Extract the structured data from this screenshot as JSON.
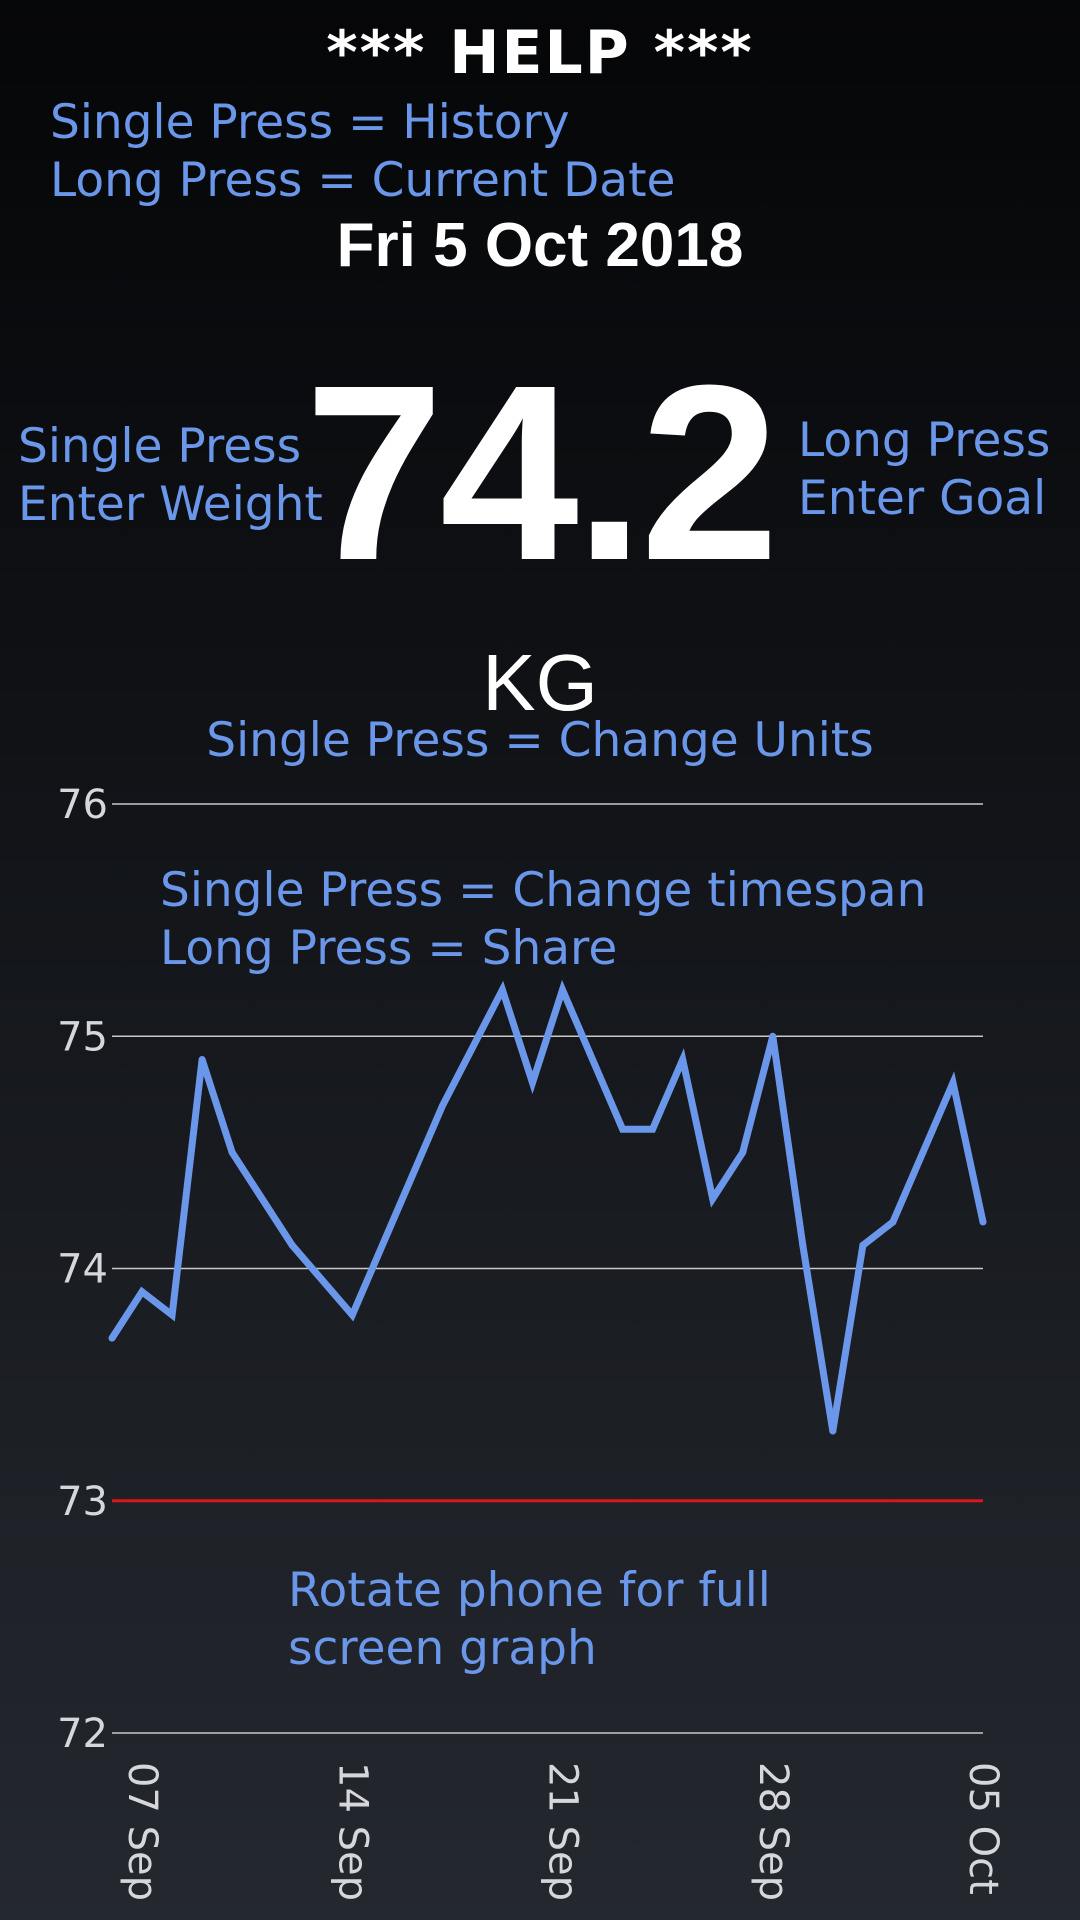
{
  "help": {
    "title": "*** HELP ***",
    "history_hint": "Single Press = History",
    "date_hint": "Long Press = Current Date",
    "weight_hint_line1": "Single Press",
    "weight_hint_line2": "Enter Weight",
    "goal_hint_line1": "Long Press",
    "goal_hint_line2": "Enter Goal",
    "units_hint": "Single Press = Change Units",
    "timespan_hint": "Single Press = Change timespan",
    "share_hint": "Long Press = Share",
    "rotate_hint_line1": "Rotate phone for full",
    "rotate_hint_line2": "screen graph"
  },
  "current": {
    "date": "Fri 5 Oct 2018",
    "weight": "74.2",
    "unit": "KG"
  },
  "colors": {
    "line": "#6b97ea",
    "goal": "#e0141b",
    "grid": "#c8c8c8",
    "help_text": "#6b97ea"
  },
  "chart_data": {
    "type": "line",
    "ylim": [
      72,
      76
    ],
    "yticks": [
      "72",
      "73",
      "74",
      "75",
      "76"
    ],
    "xlim": [
      "2018-09-06",
      "2018-10-05"
    ],
    "xticks": [
      {
        "date": "2018-09-07",
        "label": "07 Sep"
      },
      {
        "date": "2018-09-14",
        "label": "14 Sep"
      },
      {
        "date": "2018-09-21",
        "label": "21 Sep"
      },
      {
        "date": "2018-09-28",
        "label": "28 Sep"
      },
      {
        "date": "2018-10-05",
        "label": "05 Oct"
      }
    ],
    "goal": 73,
    "series": [
      {
        "points": [
          {
            "x": "2018-09-06",
            "y": 73.7
          },
          {
            "x": "2018-09-07",
            "y": 73.9
          },
          {
            "x": "2018-09-08",
            "y": 73.8
          },
          {
            "x": "2018-09-09",
            "y": 74.9
          },
          {
            "x": "2018-09-10",
            "y": 74.5
          },
          {
            "x": "2018-09-12",
            "y": 74.1
          },
          {
            "x": "2018-09-14",
            "y": 73.8
          },
          {
            "x": "2018-09-17",
            "y": 74.7
          },
          {
            "x": "2018-09-19",
            "y": 75.2
          },
          {
            "x": "2018-09-20",
            "y": 74.8
          },
          {
            "x": "2018-09-21",
            "y": 75.2
          },
          {
            "x": "2018-09-23",
            "y": 74.6
          },
          {
            "x": "2018-09-24",
            "y": 74.6
          },
          {
            "x": "2018-09-25",
            "y": 74.9
          },
          {
            "x": "2018-09-26",
            "y": 74.3
          },
          {
            "x": "2018-09-27",
            "y": 74.5
          },
          {
            "x": "2018-09-28",
            "y": 75.0
          },
          {
            "x": "2018-09-29",
            "y": 74.1
          },
          {
            "x": "2018-09-30",
            "y": 73.3
          },
          {
            "x": "2018-10-01",
            "y": 74.1
          },
          {
            "x": "2018-10-02",
            "y": 74.2
          },
          {
            "x": "2018-10-03",
            "y": 74.5
          },
          {
            "x": "2018-10-04",
            "y": 74.8
          },
          {
            "x": "2018-10-05",
            "y": 74.2
          }
        ]
      }
    ]
  }
}
